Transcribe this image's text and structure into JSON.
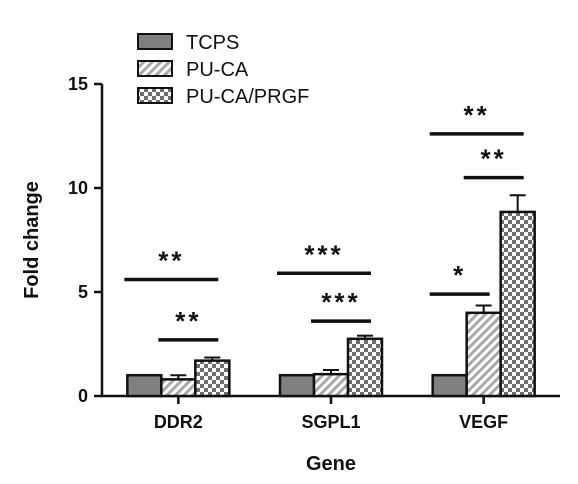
{
  "chart_data": {
    "type": "bar",
    "title": "",
    "xlabel": "Gene",
    "ylabel": "Fold change",
    "ylim": [
      0,
      15
    ],
    "yticks": [
      "0",
      "5",
      "10",
      "15"
    ],
    "categories": [
      "DDR2",
      "SGPL1",
      "VEGF"
    ],
    "grid": false,
    "legend_position": "top",
    "series": [
      {
        "name": "TCPS",
        "pattern": "solid",
        "color": "#808080",
        "values": [
          1.0,
          1.0,
          1.0
        ],
        "errors": [
          0.0,
          0.0,
          0.0
        ]
      },
      {
        "name": "PU-CA",
        "pattern": "diagonal-hatch",
        "color": "#bdbdbd",
        "values": [
          0.8,
          1.05,
          4.0
        ],
        "errors": [
          0.2,
          0.2,
          0.35
        ]
      },
      {
        "name": "PU-CA/PRGF",
        "pattern": "checkerboard",
        "color": "#8a8a8a",
        "values": [
          1.7,
          2.75,
          8.85
        ],
        "errors": [
          0.15,
          0.15,
          0.8
        ]
      }
    ],
    "significance": [
      {
        "category": "DDR2",
        "from": "TCPS",
        "to": "PU-CA/PRGF",
        "label": "**",
        "y": 5.6
      },
      {
        "category": "DDR2",
        "from": "PU-CA",
        "to": "PU-CA/PRGF",
        "label": "**",
        "y": 2.7
      },
      {
        "category": "SGPL1",
        "from": "TCPS",
        "to": "PU-CA/PRGF",
        "label": "***",
        "y": 5.9
      },
      {
        "category": "SGPL1",
        "from": "PU-CA",
        "to": "PU-CA/PRGF",
        "label": "***",
        "y": 3.6
      },
      {
        "category": "VEGF",
        "from": "TCPS",
        "to": "PU-CA",
        "label": "*",
        "y": 4.9
      },
      {
        "category": "VEGF",
        "from": "PU-CA",
        "to": "PU-CA/PRGF",
        "label": "**",
        "y": 10.5
      },
      {
        "category": "VEGF",
        "from": "TCPS",
        "to": "PU-CA/PRGF",
        "label": "**",
        "y": 12.6
      }
    ]
  }
}
